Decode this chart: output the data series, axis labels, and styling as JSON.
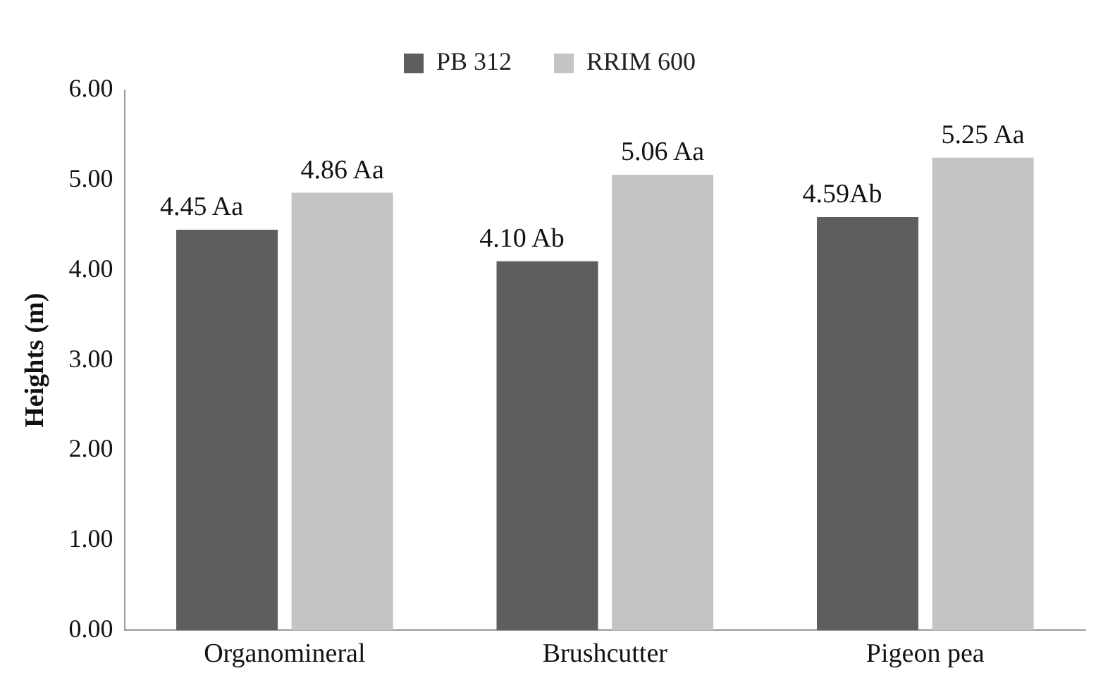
{
  "chart_data": {
    "type": "bar",
    "ylabel": "Heights (m)",
    "categories": [
      "Organomineral",
      "Brushcutter",
      "Pigeon pea"
    ],
    "series": [
      {
        "name": "PB 312",
        "color": "#5e5e5e",
        "values": [
          4.45,
          4.1,
          4.59
        ],
        "value_labels": [
          "4.45 Aa",
          "4.10 Ab",
          "4.59Ab"
        ]
      },
      {
        "name": "RRIM 600",
        "color": "#c4c4c4",
        "values": [
          4.86,
          5.06,
          5.25
        ],
        "value_labels": [
          "4.86 Aa",
          "5.06 Aa",
          "5.25 Aa"
        ]
      }
    ],
    "ylim": [
      0,
      6
    ],
    "yticks": [
      {
        "value": 0,
        "label": "0.00"
      },
      {
        "value": 1,
        "label": "1.00"
      },
      {
        "value": 2,
        "label": "2.00"
      },
      {
        "value": 3,
        "label": "3.00"
      },
      {
        "value": 4,
        "label": "4.00"
      },
      {
        "value": 5,
        "label": "5.00"
      },
      {
        "value": 6,
        "label": "6.00"
      }
    ],
    "grid": false,
    "legend": "top"
  }
}
